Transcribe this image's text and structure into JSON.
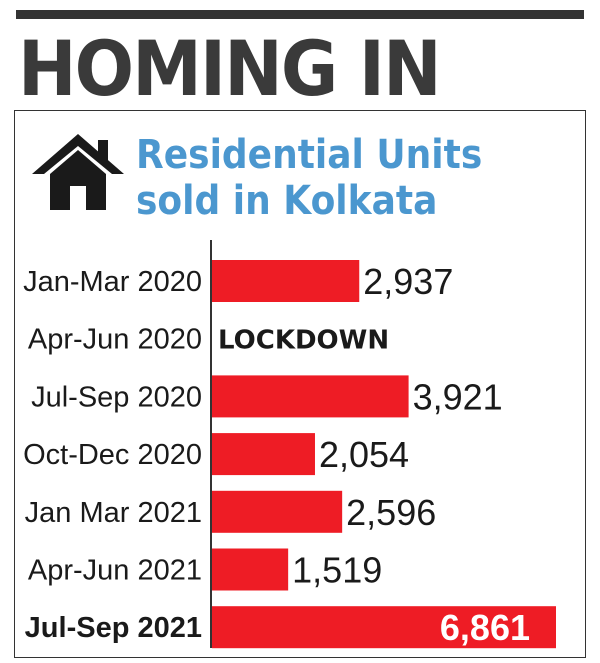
{
  "header": {
    "headline": "HOMING IN"
  },
  "chart_data": {
    "type": "bar",
    "orientation": "horizontal",
    "title": "Residential Units sold in Kolkata",
    "title_lines": [
      "Residential Units",
      "sold in Kolkata"
    ],
    "icon": "house-icon",
    "categories": [
      "Jan-Mar 2020",
      "Apr-Jun 2020",
      "Jul-Sep 2020",
      "Oct-Dec 2020",
      "Jan Mar 2021",
      "Apr-Jun 2021",
      "Jul-Sep 2021"
    ],
    "values": [
      2937,
      null,
      3921,
      2054,
      2596,
      1519,
      6861
    ],
    "value_labels": [
      "2,937",
      "",
      "3,921",
      "2,054",
      "2,596",
      "1,519",
      "6,861"
    ],
    "notes": [
      "",
      "LOCKDOWN",
      "",
      "",
      "",
      "",
      ""
    ],
    "highlight_index": 6,
    "xlim": [
      0,
      6861
    ],
    "colors": {
      "bar": "#ee1c25",
      "title": "#4b97cf",
      "headline": "#3a3a3a"
    },
    "xlabel": "",
    "ylabel": "",
    "legend": "none",
    "grid": false
  }
}
